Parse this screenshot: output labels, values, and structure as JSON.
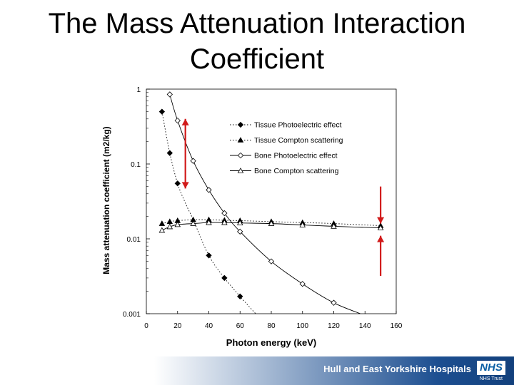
{
  "slide": {
    "title": "The Mass Attenuation Interaction Coefficient"
  },
  "footer": {
    "organization": "Hull and East Yorkshire Hospitals",
    "logo_text": "NHS",
    "trust_text": "NHS Trust"
  },
  "colors": {
    "arrow": "#d11a1a",
    "footer_blue": "#1d4f91"
  },
  "chart_data": {
    "type": "line",
    "xlabel": "Photon energy (keV)",
    "ylabel": "Mass attenuation coefficient (m2/kg)",
    "xlim": [
      0,
      160
    ],
    "ylim": [
      0.001,
      1
    ],
    "yscale": "log",
    "xticks": [
      0,
      20,
      40,
      60,
      80,
      100,
      120,
      140,
      160
    ],
    "yticks": [
      {
        "value": 1,
        "label": "1"
      },
      {
        "value": 0.1,
        "label": "0.1"
      },
      {
        "value": 0.01,
        "label": "0.01"
      },
      {
        "value": 0.001,
        "label": "0.001"
      }
    ],
    "legend_position": "top-right",
    "series": [
      {
        "name": "Tissue Photoelectric effect",
        "marker": "filled-diamond",
        "line": "dotted",
        "points": [
          [
            10,
            0.5
          ],
          [
            15,
            0.14
          ],
          [
            20,
            0.055
          ],
          [
            40,
            0.006
          ],
          [
            50,
            0.003
          ],
          [
            60,
            0.0017
          ]
        ],
        "curve": [
          [
            10,
            0.5
          ],
          [
            15,
            0.14
          ],
          [
            20,
            0.055
          ],
          [
            25,
            0.03
          ],
          [
            30,
            0.018
          ],
          [
            40,
            0.006
          ],
          [
            50,
            0.003
          ],
          [
            60,
            0.0017
          ],
          [
            65,
            0.0013
          ],
          [
            70,
            0.001
          ]
        ]
      },
      {
        "name": "Tissue Compton scattering",
        "marker": "filled-triangle",
        "line": "dotted",
        "points": [
          [
            10,
            0.016
          ],
          [
            15,
            0.017
          ],
          [
            20,
            0.0175
          ],
          [
            30,
            0.018
          ],
          [
            40,
            0.018
          ],
          [
            50,
            0.0177
          ],
          [
            60,
            0.0175
          ],
          [
            80,
            0.017
          ],
          [
            100,
            0.0165
          ],
          [
            120,
            0.016
          ],
          [
            150,
            0.015
          ]
        ],
        "curve": [
          [
            10,
            0.016
          ],
          [
            15,
            0.017
          ],
          [
            20,
            0.0175
          ],
          [
            30,
            0.018
          ],
          [
            40,
            0.018
          ],
          [
            50,
            0.0177
          ],
          [
            60,
            0.0175
          ],
          [
            80,
            0.017
          ],
          [
            100,
            0.0165
          ],
          [
            120,
            0.016
          ],
          [
            150,
            0.015
          ]
        ]
      },
      {
        "name": "Bone Photoelectric effect",
        "marker": "open-diamond",
        "line": "solid",
        "points": [
          [
            15,
            0.85
          ],
          [
            20,
            0.38
          ],
          [
            30,
            0.11
          ],
          [
            40,
            0.045
          ],
          [
            50,
            0.022
          ],
          [
            60,
            0.0125
          ],
          [
            80,
            0.005
          ],
          [
            100,
            0.0025
          ],
          [
            120,
            0.0014
          ]
        ],
        "curve": [
          [
            15,
            0.85
          ],
          [
            20,
            0.38
          ],
          [
            30,
            0.11
          ],
          [
            40,
            0.045
          ],
          [
            50,
            0.022
          ],
          [
            60,
            0.0125
          ],
          [
            80,
            0.005
          ],
          [
            100,
            0.0025
          ],
          [
            120,
            0.0014
          ],
          [
            137,
            0.001
          ]
        ]
      },
      {
        "name": "Bone Compton scattering",
        "marker": "open-triangle",
        "line": "solid",
        "points": [
          [
            10,
            0.013
          ],
          [
            15,
            0.0145
          ],
          [
            20,
            0.0155
          ],
          [
            30,
            0.016
          ],
          [
            40,
            0.0165
          ],
          [
            50,
            0.0165
          ],
          [
            60,
            0.0163
          ],
          [
            80,
            0.016
          ],
          [
            100,
            0.0153
          ],
          [
            120,
            0.0147
          ],
          [
            150,
            0.014
          ]
        ],
        "curve": [
          [
            10,
            0.013
          ],
          [
            15,
            0.0145
          ],
          [
            20,
            0.0155
          ],
          [
            30,
            0.016
          ],
          [
            40,
            0.0165
          ],
          [
            50,
            0.0165
          ],
          [
            60,
            0.0163
          ],
          [
            80,
            0.016
          ],
          [
            100,
            0.0153
          ],
          [
            120,
            0.0147
          ],
          [
            150,
            0.014
          ]
        ]
      }
    ],
    "annotations": [
      {
        "type": "double-arrow",
        "x": 25,
        "from": 0.047,
        "to": 0.4,
        "color": "#d11a1a"
      },
      {
        "type": "arrow-down",
        "x": 150,
        "from": 0.05,
        "to": 0.016,
        "color": "#d11a1a"
      },
      {
        "type": "arrow-up",
        "x": 150,
        "from": 0.0032,
        "to": 0.011,
        "color": "#d11a1a"
      }
    ]
  }
}
